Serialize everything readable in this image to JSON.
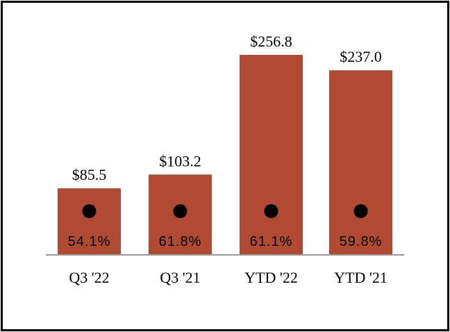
{
  "chart_data": {
    "type": "bar",
    "title": "",
    "xlabel": "",
    "ylabel": "",
    "categories": [
      "Q3 '22",
      "Q3 '21",
      "YTD '22",
      "YTD '21"
    ],
    "values": [
      85.5,
      103.2,
      256.8,
      237.0
    ],
    "value_labels": [
      "$85.5",
      "$103.2",
      "$256.8",
      "$237.0"
    ],
    "percent_markers": [
      54.1,
      61.8,
      61.1,
      59.8
    ],
    "percent_labels": [
      "54.1%",
      "61.8%",
      "61.1%",
      "59.8%"
    ],
    "ylim": [
      0,
      256.8
    ],
    "grid": false,
    "legend": "none"
  },
  "colors": {
    "bar": "#b14a33",
    "marker": "#000000",
    "axis": "#999999",
    "text": "#000000"
  }
}
